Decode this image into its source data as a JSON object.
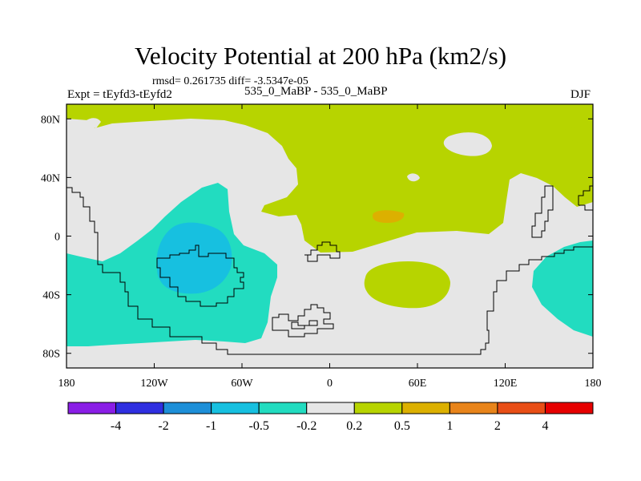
{
  "title": "Velocity Potential at 200 hPa (km2/s)",
  "stats_line": "rmsd= 0.261735 diff= -3.5347e-05",
  "expt_label": "Expt = tEyfd3-tEyfd2",
  "experiment_names": "535_0_MaBP - 535_0_MaBP",
  "season": "DJF",
  "map": {
    "lat_ticks": [
      {
        "label": "80N",
        "lat": 80
      },
      {
        "label": "40N",
        "lat": 40
      },
      {
        "label": "0",
        "lat": 0
      },
      {
        "label": "40S",
        "lat": -40
      },
      {
        "label": "80S",
        "lat": -80
      }
    ],
    "lon_ticks": [
      {
        "label": "180",
        "lon": -180
      },
      {
        "label": "120W",
        "lon": -120
      },
      {
        "label": "60W",
        "lon": -60
      },
      {
        "label": "0",
        "lon": 0
      },
      {
        "label": "60E",
        "lon": 60
      },
      {
        "label": "120E",
        "lon": 120
      },
      {
        "label": "180",
        "lon": 180
      }
    ]
  },
  "colorbar": {
    "colors": [
      "#8a1ee6",
      "#2f2fe0",
      "#1d8fd8",
      "#17c0e0",
      "#22dcc0",
      "#e6e6e6",
      "#b7d400",
      "#dcb000",
      "#e8841a",
      "#e84e16",
      "#e60000"
    ],
    "labels": [
      "-4",
      "-2",
      "-1",
      "-0.5",
      "-0.2",
      "0.2",
      "0.5",
      "1",
      "2",
      "4"
    ]
  }
}
